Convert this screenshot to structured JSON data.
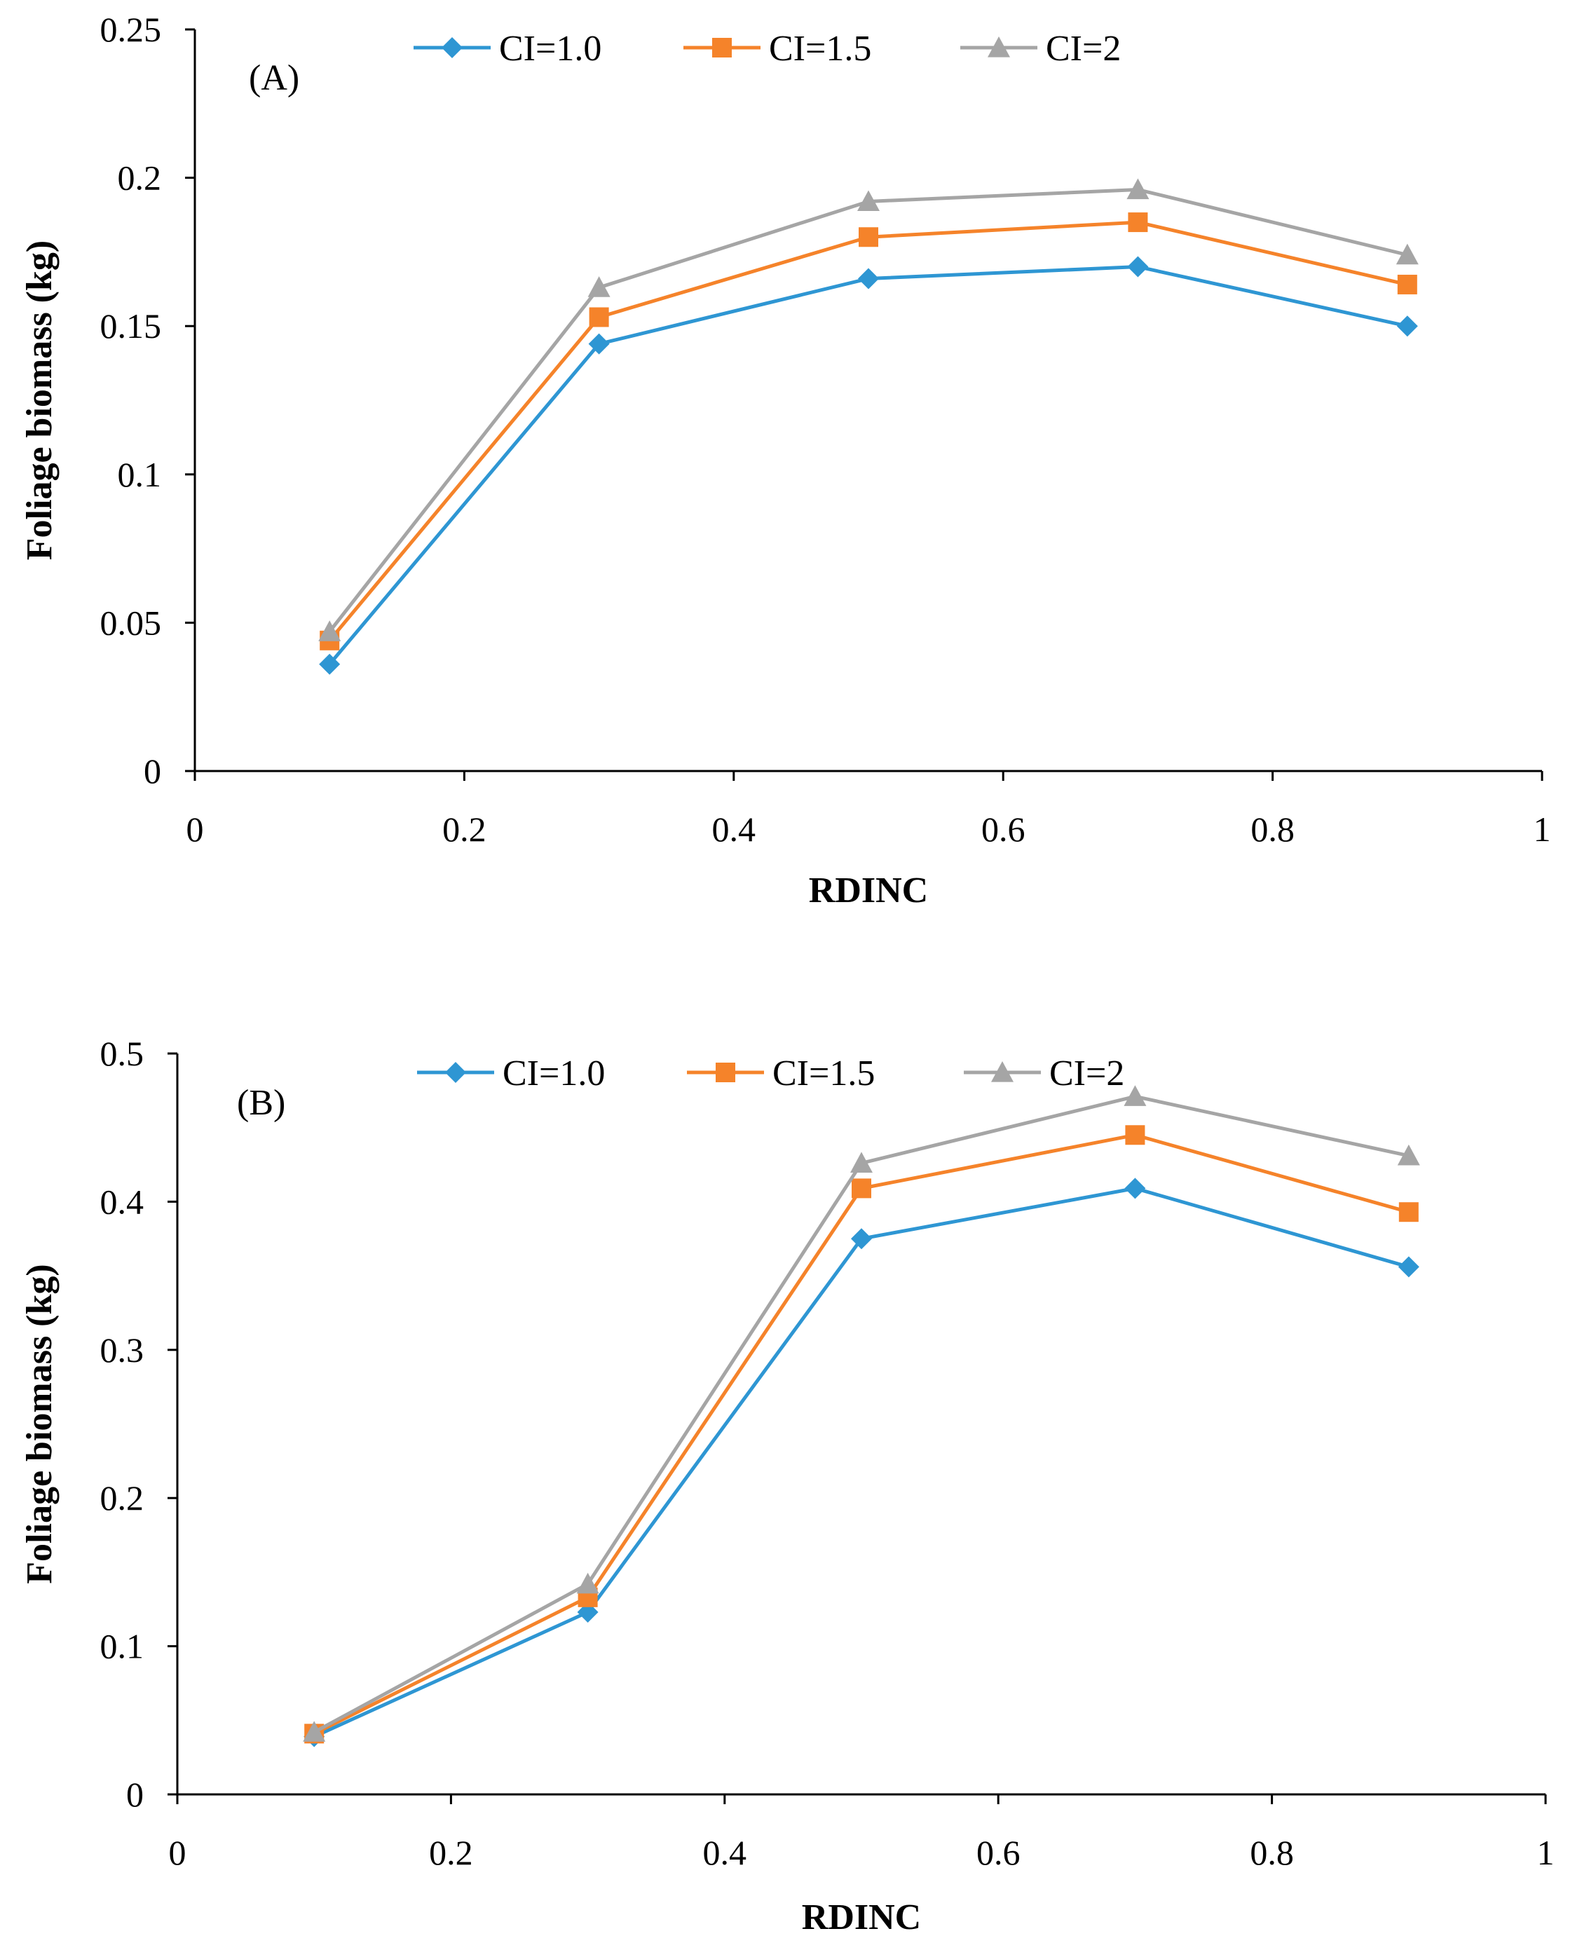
{
  "colors": {
    "CI=1.0": "#2e96d3",
    "CI=1.5": "#f5832a",
    "CI=2": "#a5a5a5",
    "axis": "#000000"
  },
  "chart_data": [
    {
      "type": "line",
      "panel_label": "(A)",
      "xlabel": "RDINC",
      "ylabel": "Foliage biomass (kg)",
      "xlim": [
        0,
        1
      ],
      "ylim": [
        0,
        0.25
      ],
      "xticks": [
        0,
        0.2,
        0.4,
        0.6,
        0.8,
        1
      ],
      "xtick_labels": [
        "0",
        "0.2",
        "0.4",
        "0.6",
        "0.8",
        "1"
      ],
      "yticks": [
        0,
        0.05,
        0.1,
        0.15,
        0.2,
        0.25
      ],
      "ytick_labels": [
        "0",
        "0.05",
        "0.1",
        "0.15",
        "0.2",
        "0.25"
      ],
      "legend_position": "top",
      "grid": false,
      "x": [
        0.1,
        0.3,
        0.5,
        0.7,
        0.9
      ],
      "series": [
        {
          "name": "CI=1.0",
          "marker": "diamond",
          "values": [
            0.036,
            0.144,
            0.166,
            0.17,
            0.15
          ]
        },
        {
          "name": "CI=1.5",
          "marker": "square",
          "values": [
            0.044,
            0.153,
            0.18,
            0.185,
            0.164
          ]
        },
        {
          "name": "CI=2",
          "marker": "triangle",
          "values": [
            0.047,
            0.163,
            0.192,
            0.196,
            0.174
          ]
        }
      ]
    },
    {
      "type": "line",
      "panel_label": "(B)",
      "xlabel": "RDINC",
      "ylabel": "Foliage biomass (kg)",
      "xlim": [
        0,
        1
      ],
      "ylim": [
        0,
        0.5
      ],
      "xticks": [
        0,
        0.2,
        0.4,
        0.6,
        0.8,
        1
      ],
      "xtick_labels": [
        "0",
        "0.2",
        "0.4",
        "0.6",
        "0.8",
        "1"
      ],
      "yticks": [
        0,
        0.1,
        0.2,
        0.3,
        0.4,
        0.5
      ],
      "ytick_labels": [
        "0",
        "0.1",
        "0.2",
        "0.3",
        "0.4",
        "0.5"
      ],
      "legend_position": "top",
      "grid": false,
      "x": [
        0.1,
        0.3,
        0.5,
        0.7,
        0.9
      ],
      "series": [
        {
          "name": "CI=1.0",
          "marker": "diamond",
          "values": [
            0.039,
            0.123,
            0.375,
            0.409,
            0.356
          ]
        },
        {
          "name": "CI=1.5",
          "marker": "square",
          "values": [
            0.041,
            0.133,
            0.409,
            0.445,
            0.393
          ]
        },
        {
          "name": "CI=2",
          "marker": "triangle",
          "values": [
            0.042,
            0.142,
            0.426,
            0.471,
            0.431
          ]
        }
      ]
    }
  ]
}
